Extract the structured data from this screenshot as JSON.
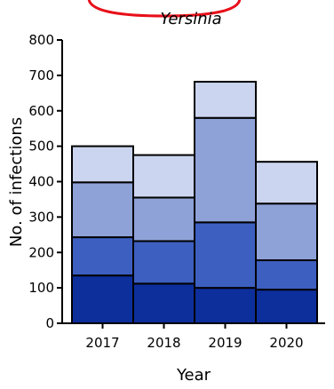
{
  "chart_data": {
    "type": "bar",
    "stacked": true,
    "title": "Yersinia",
    "xlabel": "Year",
    "ylabel": "No. of infections",
    "categories": [
      "2017",
      "2018",
      "2019",
      "2020"
    ],
    "ylim": [
      0,
      800
    ],
    "yticks": [
      0,
      100,
      200,
      300,
      400,
      500,
      600,
      700,
      800
    ],
    "grid": false,
    "series": [
      {
        "values": [
          135,
          112,
          100,
          95
        ],
        "color": "#0d2f9c"
      },
      {
        "values": [
          108,
          120,
          185,
          83
        ],
        "color": "#3d5fc0"
      },
      {
        "values": [
          155,
          123,
          295,
          160
        ],
        "color": "#8ea2d8"
      },
      {
        "values": [
          102,
          120,
          102,
          118
        ],
        "color": "#cbd5ef"
      }
    ]
  },
  "decorations": {
    "top_arc_color": "#e8101a"
  }
}
